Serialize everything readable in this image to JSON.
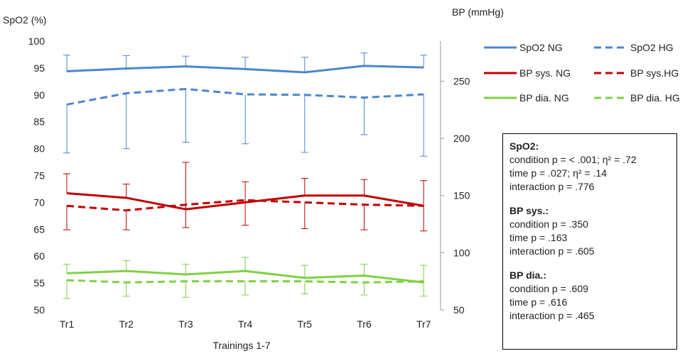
{
  "chart_data": {
    "type": "line",
    "xlabel": "Trainings 1-7",
    "ylabel_left": "SpO2 (%)",
    "ylabel_right": "BP (mmHg)",
    "ylim_left": [
      50,
      100
    ],
    "ylim_right": [
      50,
      285
    ],
    "yticks_left": [
      "50",
      "55",
      "60",
      "65",
      "70",
      "75",
      "80",
      "85",
      "90",
      "95",
      "100"
    ],
    "yticks_right": [
      "50",
      "100",
      "150",
      "200",
      "250"
    ],
    "categories": [
      "Tr1",
      "Tr2",
      "Tr3",
      "Tr4",
      "Tr5",
      "Tr6",
      "Tr7"
    ],
    "series": [
      {
        "name": "SpO2 NG",
        "axis": "left",
        "color": "#4a86cf",
        "dash": false,
        "values": [
          94.4,
          94.9,
          95.3,
          94.8,
          94.2,
          95.4,
          95.1
        ],
        "err_upper": [
          97.4,
          97.3,
          97.2,
          97.0,
          97.0,
          97.8,
          97.4
        ],
        "err_lower": null
      },
      {
        "name": "SpO2 HG",
        "axis": "left",
        "color": "#4a86cf",
        "dash": true,
        "values": [
          88.2,
          90.3,
          91.1,
          90.1,
          90.0,
          89.5,
          90.1
        ],
        "err_upper": null,
        "err_lower": [
          79.2,
          80.0,
          81.2,
          80.9,
          79.3,
          82.6,
          78.6
        ]
      },
      {
        "name": "BP sys. NG",
        "axis": "right",
        "color": "#c00000",
        "dash": false,
        "values": [
          152,
          148,
          138,
          144,
          150,
          150,
          141
        ],
        "err_upper": [
          169,
          160,
          179,
          162,
          165,
          164,
          163
        ],
        "err_lower": null
      },
      {
        "name": "BP sys.HG",
        "axis": "right",
        "color": "#c00000",
        "dash": true,
        "values": [
          141,
          137,
          142,
          146,
          144,
          142,
          141
        ],
        "err_upper": null,
        "err_lower": [
          120,
          120,
          122,
          124,
          121,
          120,
          119
        ]
      },
      {
        "name": "BP dia. NG",
        "axis": "right",
        "color": "#7ed144",
        "dash": false,
        "values": [
          82,
          84,
          81,
          84,
          78,
          80,
          74
        ],
        "err_upper": [
          90,
          93,
          90,
          96,
          89,
          90,
          89
        ],
        "err_lower": null
      },
      {
        "name": "BP dia. HG",
        "axis": "right",
        "color": "#7ed144",
        "dash": true,
        "values": [
          76,
          74,
          75,
          75,
          75,
          74,
          75
        ],
        "err_upper": null,
        "err_lower": [
          60,
          62,
          61,
          63,
          64,
          63,
          62
        ]
      }
    ]
  },
  "stats": {
    "spo2": {
      "title": "SpO2:",
      "line1": "condition p = < .001; η² = .72",
      "line2": "time p = .027; η² = .14",
      "line3": "interaction p = .776"
    },
    "bp_sys": {
      "title": "BP sys.:",
      "line1": "condition p = .350",
      "line2": "time p = .163",
      "line3": "interaction p = .605"
    },
    "bp_dia": {
      "title": "BP dia.:",
      "line1": "condition p = .609",
      "line2": "time p = .616",
      "line3": "interaction p = .465"
    }
  }
}
